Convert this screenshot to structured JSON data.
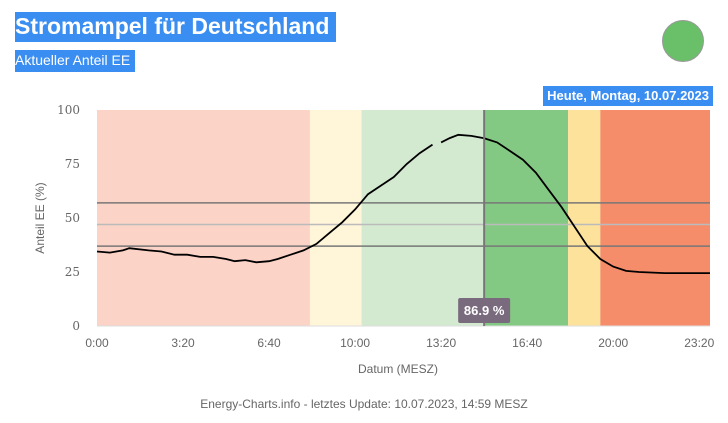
{
  "header": {
    "title": "Stromampel für Deutschland",
    "subtitle": "Aktueller Anteil EE",
    "date_label": "Heute, Montag, 10.07.2023",
    "traffic_light_color": "#6abf69"
  },
  "footer": {
    "text": "Energy-Charts.info - letztes Update: 10.07.2023, 14:59 MESZ"
  },
  "chart_data": {
    "type": "line",
    "xlabel": "Datum (MESZ)",
    "ylabel": "Anteil EE (%)",
    "xlim": [
      "0:00",
      "23:45"
    ],
    "ylim": [
      0,
      100
    ],
    "x_ticks": [
      "0:00",
      "3:20",
      "6:40",
      "10:00",
      "13:20",
      "16:40",
      "20:00",
      "23:20"
    ],
    "y_ticks": [
      0,
      25,
      50,
      75,
      100
    ],
    "reference_lines": [
      57,
      47,
      37
    ],
    "current_time": "15:00",
    "current_value_label": "86.9 %",
    "bands": [
      {
        "from": "0:00",
        "to": "8:15",
        "color": "#fcd3c7"
      },
      {
        "from": "8:15",
        "to": "10:15",
        "color": "#fff5d9"
      },
      {
        "from": "10:15",
        "to": "15:00",
        "color": "#d3ead1"
      },
      {
        "from": "15:00",
        "to": "18:15",
        "color": "#84c983"
      },
      {
        "from": "18:15",
        "to": "19:30",
        "color": "#fde29c"
      },
      {
        "from": "19:30",
        "to": "23:45",
        "color": "#f68d6a"
      }
    ],
    "series": [
      {
        "x": [
          "0:00",
          "0:30",
          "1:00",
          "1:15",
          "2:00",
          "2:30",
          "3:00",
          "3:30",
          "4:00",
          "4:30",
          "5:00",
          "5:20",
          "5:45",
          "6:10",
          "6:40",
          "7:00",
          "7:30",
          "8:00",
          "8:30",
          "9:00",
          "9:30",
          "10:00",
          "10:30",
          "11:00",
          "11:30",
          "12:00",
          "12:30",
          "13:00",
          "13:10",
          "13:20",
          "13:40",
          "14:00",
          "14:30",
          "15:00",
          "15:30",
          "16:00",
          "16:30",
          "17:00",
          "17:30",
          "18:00",
          "18:30",
          "19:00",
          "19:30",
          "20:00",
          "20:30",
          "21:00",
          "22:00",
          "23:00",
          "23:45"
        ],
        "values": [
          34.5,
          34,
          35,
          36,
          35,
          34.5,
          33,
          33,
          32,
          32,
          31,
          30,
          30.5,
          29.5,
          30,
          31,
          33,
          35,
          38,
          43,
          48,
          54,
          61,
          65,
          69,
          75,
          80,
          84,
          null,
          85,
          87,
          88.5,
          88,
          86.9,
          85,
          81,
          77,
          71,
          63,
          55,
          46,
          37,
          31,
          27.5,
          25.5,
          25,
          24.5,
          24.5,
          24.5
        ]
      }
    ]
  }
}
